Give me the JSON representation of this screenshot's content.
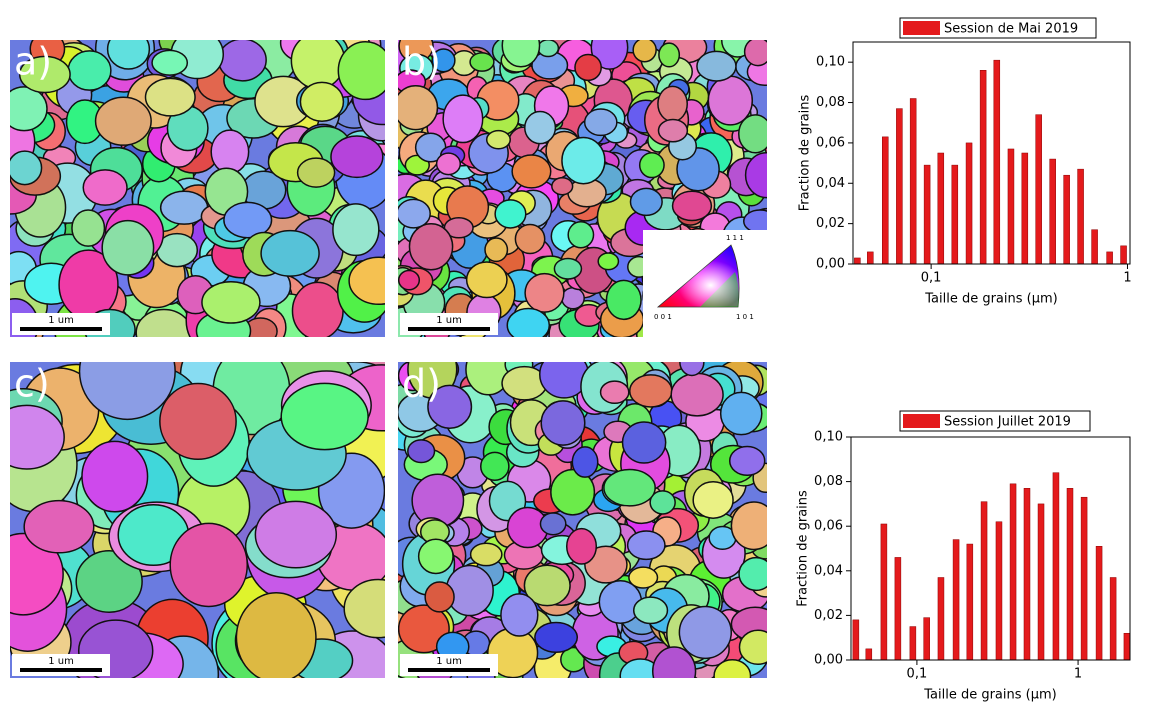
{
  "panels": {
    "labels": [
      "a)",
      "b)",
      "c)",
      "d)"
    ],
    "scale_bars": [
      "1 um",
      "1 um",
      "1 um",
      "1 um"
    ],
    "ipf_legend": {
      "top": "1 1 1",
      "left": "0 0 1",
      "right": "1 0 1"
    }
  },
  "chart_data": [
    {
      "type": "bar",
      "log_x": true,
      "xlabel": "Taille de grains (µm)",
      "ylabel": "Fraction de grains",
      "x": [
        0.0421,
        0.049,
        0.0584,
        0.0689,
        0.081,
        0.0954,
        0.112,
        0.132,
        0.156,
        0.184,
        0.216,
        0.255,
        0.3,
        0.353,
        0.416,
        0.49,
        0.577,
        0.68,
        0.811,
        0.955
      ],
      "series": [
        {
          "name": "Session de Mai 2019",
          "color": "#e41a1c",
          "values": [
            0.003,
            0.006,
            0.063,
            0.077,
            0.082,
            0.049,
            0.055,
            0.049,
            0.06,
            0.096,
            0.101,
            0.057,
            0.055,
            0.074,
            0.052,
            0.044,
            0.047,
            0.017,
            0.006,
            0.009
          ]
        }
      ],
      "xlim": [
        0.04,
        1.03
      ],
      "xticks": [
        {
          "value": 0.1,
          "label": "0,1"
        },
        1
      ],
      "ylim": [
        0,
        0.11
      ],
      "yticks": [
        {
          "value": 0,
          "label": "0,00"
        },
        {
          "value": 0.02,
          "label": "0,02"
        },
        {
          "value": 0.04,
          "label": "0,04"
        },
        {
          "value": 0.06,
          "label": "0,06"
        },
        {
          "value": 0.08,
          "label": "0,08"
        },
        {
          "value": 0.1,
          "label": "0,10"
        }
      ]
    },
    {
      "type": "bar",
      "log_x": true,
      "xlabel": "Taille de grains (µm)",
      "ylabel": "Fraction de grains",
      "x": [
        0.0418,
        0.0503,
        0.0624,
        0.0762,
        0.0944,
        0.115,
        0.141,
        0.175,
        0.213,
        0.261,
        0.323,
        0.395,
        0.482,
        0.589,
        0.729,
        0.891,
        1.09,
        1.35,
        1.65,
        2.01
      ],
      "series": [
        {
          "name": "Session Juillet 2019",
          "color": "#e41a1c",
          "values": [
            0.018,
            0.005,
            0.061,
            0.046,
            0.015,
            0.019,
            0.037,
            0.054,
            0.052,
            0.071,
            0.062,
            0.079,
            0.077,
            0.07,
            0.084,
            0.077,
            0.073,
            0.051,
            0.037,
            0.012
          ]
        }
      ],
      "xlim": [
        0.039,
        2.1
      ],
      "xticks": [
        {
          "value": 0.1,
          "label": "0,1"
        },
        1
      ],
      "ylim": [
        0,
        0.1
      ],
      "yticks": [
        {
          "value": 0,
          "label": "0,00"
        },
        {
          "value": 0.02,
          "label": "0,02"
        },
        {
          "value": 0.04,
          "label": "0,04"
        },
        {
          "value": 0.06,
          "label": "0,06"
        },
        {
          "value": 0.08,
          "label": "0,08"
        },
        {
          "value": 0.1,
          "label": "0,10"
        }
      ]
    }
  ]
}
